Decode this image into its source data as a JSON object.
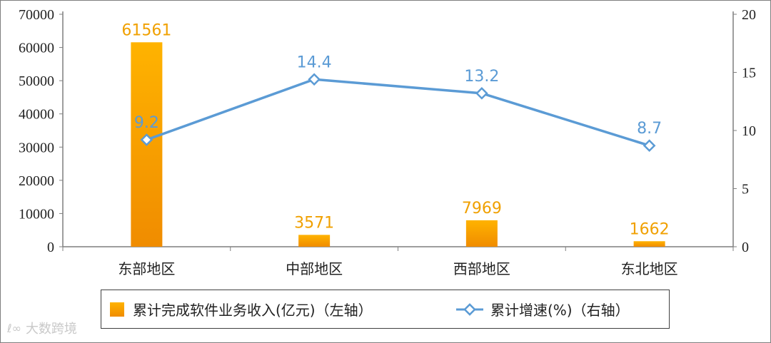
{
  "chart_data": {
    "type": "bar",
    "categories": [
      "东部地区",
      "中部地区",
      "西部地区",
      "东北地区"
    ],
    "series": [
      {
        "name": "累计完成软件业务收入(亿元)（左轴）",
        "type": "bar",
        "axis": "left",
        "color": "#f39c12",
        "values": [
          61561,
          3571,
          7969,
          1662
        ]
      },
      {
        "name": "累计增速(%)（右轴）",
        "type": "line",
        "axis": "right",
        "color": "#5b9bd5",
        "values": [
          9.2,
          14.4,
          13.2,
          8.7
        ]
      }
    ],
    "ylim_left": [
      0,
      70000
    ],
    "yticks_left": [
      0,
      10000,
      20000,
      30000,
      40000,
      50000,
      60000,
      70000
    ],
    "ylim_right": [
      0,
      20
    ],
    "yticks_right": [
      0,
      5,
      10,
      15,
      20
    ],
    "data_labels": true,
    "grid": false,
    "legend_position": "bottom"
  },
  "watermark": "大数跨境"
}
